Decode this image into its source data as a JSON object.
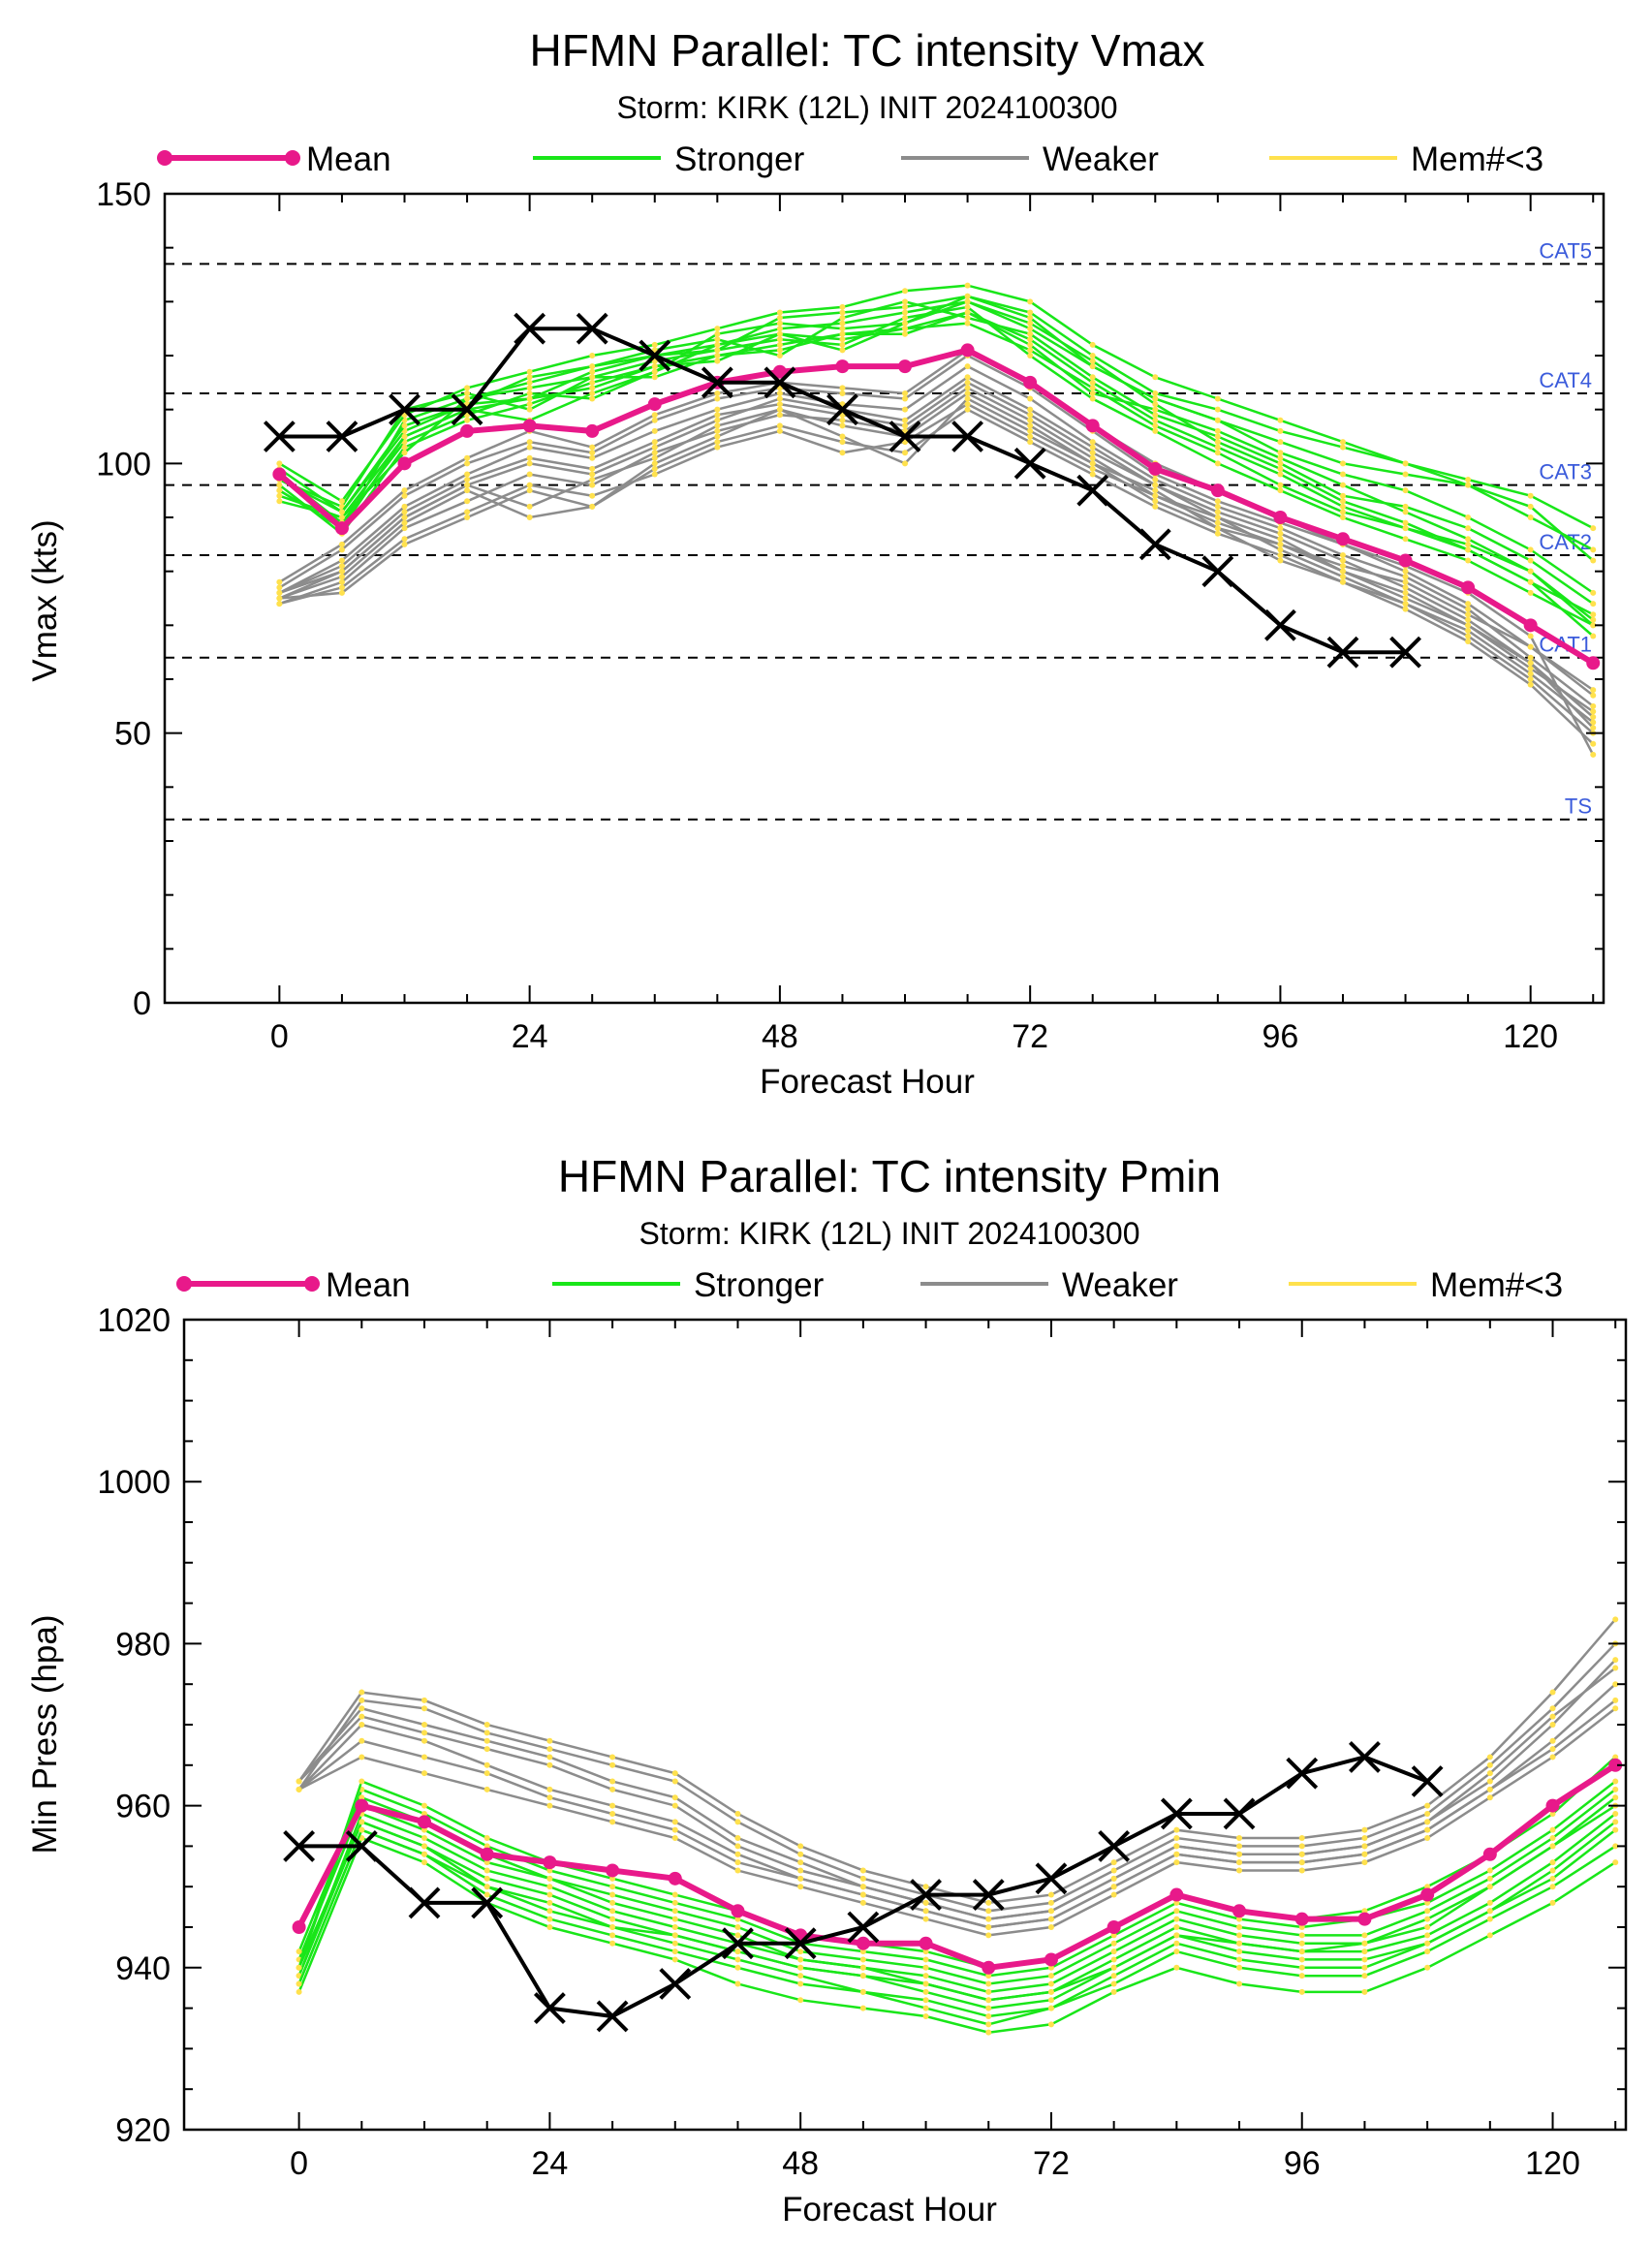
{
  "colors": {
    "mean": "#e8198a",
    "stronger": "#19e619",
    "weaker": "#8c8c8c",
    "memlt3": "#ffe14d",
    "best_track": "#000000",
    "category_labels": "#3b5bdb"
  },
  "chart_data": [
    {
      "type": "line",
      "title": "HFMN Parallel: TC intensity Vmax",
      "subtitle": "Storm: KIRK (12L) INIT 2024100300",
      "xlabel": "Forecast Hour",
      "ylabel": "Vmax (kts)",
      "xlim": [
        -11,
        127
      ],
      "ylim": [
        0,
        150
      ],
      "x_ticks": [
        "0",
        "24",
        "48",
        "72",
        "96",
        "120"
      ],
      "y_ticks": [
        "0",
        "50",
        "100",
        "150"
      ],
      "legend": [
        "Mean",
        "Stronger",
        "Weaker",
        "Mem#<3"
      ],
      "legend_placement": "top",
      "category_lines": [
        {
          "label": "CAT5",
          "value": 137
        },
        {
          "label": "CAT4",
          "value": 113
        },
        {
          "label": "CAT3",
          "value": 96
        },
        {
          "label": "CAT2",
          "value": 83
        },
        {
          "label": "CAT1",
          "value": 64
        },
        {
          "label": "TS",
          "value": 34
        }
      ],
      "x": [
        0,
        6,
        12,
        18,
        24,
        30,
        36,
        42,
        48,
        54,
        60,
        66,
        72,
        78,
        84,
        90,
        96,
        102,
        108,
        114,
        120,
        126
      ],
      "mean": [
        98,
        88,
        100,
        106,
        107,
        106,
        111,
        115,
        117,
        118,
        118,
        121,
        115,
        107,
        99,
        95,
        90,
        86,
        82,
        77,
        70,
        63
      ],
      "best_track": {
        "x": [
          0,
          6,
          12,
          18,
          24,
          30,
          36,
          42,
          48,
          54,
          60,
          66,
          72,
          78,
          84,
          90,
          96,
          102,
          108
        ],
        "y": [
          105,
          105,
          110,
          110,
          125,
          125,
          120,
          115,
          115,
          110,
          105,
          105,
          100,
          95,
          85,
          80,
          70,
          65,
          65
        ]
      },
      "stronger": [
        [
          93,
          90,
          105,
          110,
          112,
          114,
          118,
          120,
          122,
          124,
          125,
          128,
          123,
          115,
          108,
          103,
          98,
          92,
          88,
          84,
          78,
          72
        ],
        [
          95,
          88,
          108,
          112,
          115,
          118,
          120,
          122,
          125,
          126,
          128,
          130,
          125,
          118,
          112,
          108,
          102,
          98,
          95,
          90,
          84,
          76
        ],
        [
          97,
          92,
          110,
          113,
          110,
          116,
          119,
          121,
          123,
          122,
          127,
          129,
          120,
          112,
          106,
          100,
          95,
          90,
          86,
          82,
          76,
          70
        ],
        [
          98,
          89,
          104,
          109,
          113,
          112,
          117,
          124,
          126,
          125,
          126,
          131,
          128,
          120,
          113,
          110,
          106,
          103,
          100,
          96,
          90,
          84
        ],
        [
          99,
          91,
          106,
          111,
          116,
          118,
          121,
          123,
          120,
          127,
          130,
          127,
          124,
          116,
          109,
          105,
          100,
          94,
          92,
          88,
          82,
          74
        ],
        [
          96,
          87,
          103,
          108,
          111,
          115,
          118,
          119,
          124,
          123,
          125,
          126,
          121,
          114,
          107,
          102,
          96,
          91,
          88,
          85,
          80,
          71
        ],
        [
          94,
          90,
          102,
          112,
          114,
          116,
          116,
          120,
          121,
          124,
          124,
          128,
          122,
          113,
          110,
          106,
          101,
          96,
          91,
          86,
          80,
          70
        ],
        [
          100,
          93,
          109,
          114,
          117,
          120,
          122,
          125,
          128,
          129,
          132,
          133,
          130,
          122,
          116,
          112,
          108,
          104,
          100,
          97,
          94,
          88
        ],
        [
          95,
          88,
          105,
          110,
          108,
          113,
          117,
          122,
          124,
          121,
          126,
          130,
          126,
          119,
          111,
          104,
          99,
          93,
          89,
          84,
          78,
          68
        ],
        [
          97,
          91,
          107,
          111,
          112,
          117,
          120,
          121,
          127,
          128,
          129,
          131,
          127,
          118,
          112,
          108,
          104,
          100,
          98,
          96,
          92,
          82
        ]
      ],
      "weaker": [
        [
          75,
          76,
          85,
          90,
          95,
          92,
          100,
          105,
          110,
          105,
          100,
          112,
          106,
          100,
          93,
          88,
          85,
          81,
          78,
          72,
          66,
          58
        ],
        [
          76,
          80,
          90,
          96,
          100,
          98,
          103,
          108,
          112,
          110,
          108,
          116,
          110,
          103,
          96,
          90,
          86,
          80,
          76,
          70,
          62,
          54
        ],
        [
          74,
          78,
          88,
          93,
          98,
          96,
          102,
          106,
          109,
          108,
          106,
          114,
          108,
          101,
          94,
          90,
          84,
          79,
          74,
          68,
          60,
          50
        ],
        [
          76,
          82,
          92,
          98,
          103,
          101,
          106,
          110,
          113,
          111,
          110,
          118,
          112,
          104,
          97,
          92,
          88,
          83,
          79,
          73,
          64,
          55
        ],
        [
          75,
          79,
          89,
          95,
          90,
          92,
          99,
          104,
          107,
          104,
          102,
          110,
          104,
          98,
          92,
          87,
          83,
          78,
          74,
          69,
          61,
          52
        ],
        [
          77,
          84,
          94,
          100,
          104,
          102,
          108,
          112,
          114,
          113,
          112,
          120,
          114,
          106,
          98,
          93,
          89,
          85,
          80,
          74,
          66,
          57
        ],
        [
          74,
          77,
          86,
          91,
          96,
          94,
          98,
          103,
          106,
          102,
          104,
          111,
          105,
          99,
          94,
          89,
          85,
          80,
          75,
          70,
          63,
          53
        ],
        [
          78,
          85,
          95,
          101,
          106,
          103,
          109,
          113,
          115,
          114,
          113,
          121,
          115,
          107,
          100,
          95,
          90,
          85,
          81,
          76,
          68,
          46
        ],
        [
          75,
          80,
          90,
          96,
          92,
          97,
          101,
          107,
          110,
          107,
          105,
          113,
          107,
          100,
          95,
          88,
          82,
          78,
          73,
          67,
          59,
          48
        ],
        [
          76,
          81,
          91,
          97,
          101,
          99,
          104,
          109,
          111,
          109,
          107,
          115,
          109,
          102,
          96,
          91,
          87,
          82,
          77,
          71,
          63,
          51
        ]
      ]
    },
    {
      "type": "line",
      "title": "HFMN Parallel: TC intensity Pmin",
      "subtitle": "Storm: KIRK (12L) INIT 2024100300",
      "xlabel": "Forecast Hour",
      "ylabel": "Min Press (hpa)",
      "xlim": [
        -11,
        127
      ],
      "ylim": [
        920,
        1020
      ],
      "x_ticks": [
        "0",
        "24",
        "48",
        "72",
        "96",
        "120"
      ],
      "y_ticks": [
        "920",
        "940",
        "960",
        "980",
        "1000",
        "1020"
      ],
      "legend": [
        "Mean",
        "Stronger",
        "Weaker",
        "Mem#<3"
      ],
      "legend_placement": "top",
      "x": [
        0,
        6,
        12,
        18,
        24,
        30,
        36,
        42,
        48,
        54,
        60,
        66,
        72,
        78,
        84,
        90,
        96,
        102,
        108,
        114,
        120,
        126
      ],
      "mean": [
        945,
        960,
        958,
        954,
        953,
        952,
        951,
        947,
        944,
        943,
        943,
        940,
        941,
        945,
        949,
        947,
        946,
        946,
        949,
        954,
        960,
        965
      ],
      "best_track": {
        "x": [
          0,
          6,
          12,
          18,
          24,
          30,
          36,
          42,
          48,
          54,
          60,
          66,
          72,
          78,
          84,
          90,
          96,
          102,
          108
        ],
        "y": [
          955,
          955,
          948,
          948,
          935,
          934,
          938,
          943,
          943,
          945,
          949,
          949,
          951,
          955,
          959,
          959,
          964,
          966,
          963
        ]
      },
      "stronger": [
        [
          940,
          958,
          955,
          950,
          948,
          945,
          944,
          942,
          940,
          939,
          938,
          936,
          937,
          940,
          944,
          942,
          941,
          941,
          943,
          947,
          952,
          958
        ],
        [
          938,
          957,
          954,
          949,
          946,
          944,
          942,
          940,
          938,
          937,
          935,
          933,
          935,
          938,
          942,
          940,
          939,
          939,
          942,
          946,
          950,
          955
        ],
        [
          939,
          959,
          956,
          952,
          950,
          947,
          945,
          943,
          941,
          940,
          939,
          937,
          938,
          942,
          946,
          944,
          943,
          943,
          945,
          950,
          955,
          960
        ],
        [
          941,
          960,
          957,
          953,
          951,
          949,
          947,
          945,
          942,
          941,
          940,
          938,
          939,
          943,
          947,
          945,
          944,
          944,
          947,
          951,
          956,
          962
        ],
        [
          937,
          956,
          953,
          948,
          945,
          943,
          941,
          938,
          936,
          935,
          934,
          932,
          933,
          937,
          940,
          938,
          937,
          937,
          940,
          944,
          948,
          953
        ],
        [
          940,
          962,
          959,
          955,
          952,
          950,
          948,
          946,
          943,
          942,
          941,
          939,
          940,
          944,
          948,
          946,
          945,
          946,
          948,
          952,
          957,
          963
        ],
        [
          939,
          958,
          955,
          951,
          949,
          946,
          944,
          942,
          940,
          939,
          937,
          935,
          936,
          940,
          944,
          943,
          942,
          942,
          944,
          948,
          953,
          959
        ],
        [
          942,
          961,
          958,
          954,
          951,
          948,
          946,
          944,
          941,
          940,
          938,
          936,
          937,
          941,
          945,
          943,
          942,
          943,
          946,
          950,
          955,
          961
        ],
        [
          938,
          957,
          954,
          950,
          947,
          945,
          943,
          941,
          939,
          937,
          936,
          934,
          935,
          939,
          943,
          941,
          940,
          940,
          943,
          947,
          951,
          957
        ],
        [
          940,
          963,
          960,
          956,
          953,
          951,
          949,
          947,
          944,
          943,
          942,
          940,
          941,
          945,
          949,
          947,
          946,
          947,
          950,
          954,
          959,
          966
        ]
      ],
      "weaker": [
        [
          962,
          973,
          972,
          969,
          967,
          965,
          963,
          958,
          954,
          951,
          949,
          947,
          948,
          952,
          956,
          955,
          955,
          956,
          959,
          965,
          972,
          980
        ],
        [
          963,
          972,
          970,
          968,
          966,
          963,
          961,
          956,
          953,
          950,
          948,
          946,
          947,
          951,
          955,
          954,
          954,
          955,
          958,
          963,
          970,
          978
        ],
        [
          962,
          970,
          968,
          965,
          962,
          960,
          958,
          954,
          951,
          949,
          947,
          945,
          946,
          950,
          954,
          953,
          953,
          954,
          957,
          962,
          968,
          975
        ],
        [
          963,
          974,
          973,
          970,
          968,
          966,
          964,
          959,
          955,
          952,
          950,
          948,
          949,
          953,
          957,
          956,
          956,
          957,
          960,
          966,
          974,
          983
        ],
        [
          962,
          966,
          964,
          962,
          960,
          958,
          956,
          952,
          950,
          948,
          946,
          944,
          945,
          949,
          953,
          952,
          952,
          953,
          956,
          961,
          966,
          972
        ],
        [
          963,
          971,
          969,
          967,
          965,
          962,
          960,
          955,
          952,
          950,
          948,
          946,
          947,
          951,
          955,
          954,
          954,
          955,
          958,
          964,
          971,
          977
        ],
        [
          962,
          968,
          966,
          964,
          961,
          959,
          957,
          953,
          951,
          949,
          947,
          945,
          946,
          950,
          954,
          953,
          953,
          954,
          957,
          962,
          967,
          973
        ]
      ]
    }
  ]
}
